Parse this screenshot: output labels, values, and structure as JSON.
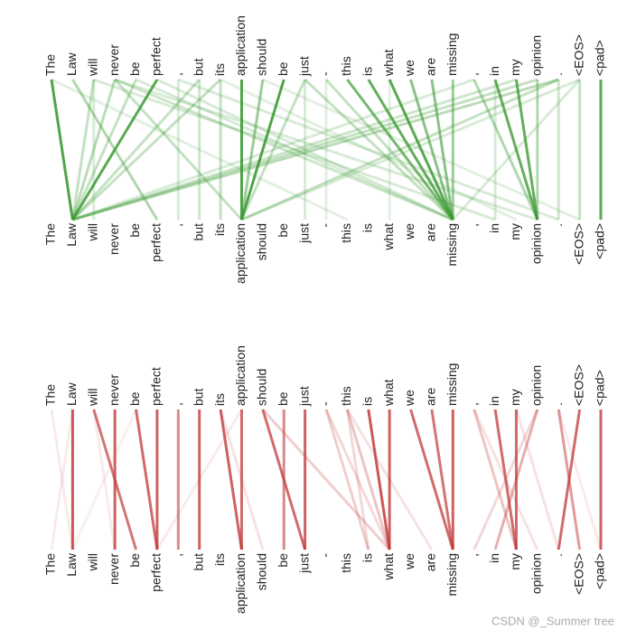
{
  "tokens": [
    "The",
    "Law",
    "will",
    "never",
    "be",
    "perfect",
    ",",
    "but",
    "its",
    "application",
    "should",
    "be",
    "just",
    "-",
    "this",
    "is",
    "what",
    "we",
    "are",
    "missing",
    ",",
    "in",
    "my",
    "opinion",
    ".",
    "<EOS>",
    "<pad>"
  ],
  "panels": [
    {
      "color": "#3d9a35",
      "edges": [
        [
          0,
          1,
          0.9
        ],
        [
          2,
          1,
          0.3
        ],
        [
          3,
          1,
          0.35
        ],
        [
          4,
          1,
          0.3
        ],
        [
          5,
          1,
          0.85
        ],
        [
          1,
          5,
          0.4
        ],
        [
          3,
          9,
          0.3
        ],
        [
          7,
          1,
          0.3
        ],
        [
          8,
          1,
          0.3
        ],
        [
          9,
          9,
          0.9
        ],
        [
          10,
          9,
          0.5
        ],
        [
          11,
          9,
          0.9
        ],
        [
          12,
          9,
          0.3
        ],
        [
          14,
          19,
          0.7
        ],
        [
          15,
          19,
          0.8
        ],
        [
          16,
          19,
          0.85
        ],
        [
          17,
          19,
          0.6
        ],
        [
          18,
          19,
          0.6
        ],
        [
          19,
          19,
          0.5
        ],
        [
          13,
          19,
          0.3
        ],
        [
          12,
          19,
          0.3
        ],
        [
          5,
          19,
          0.2
        ],
        [
          3,
          19,
          0.25
        ],
        [
          4,
          19,
          0.2
        ],
        [
          20,
          23,
          0.4
        ],
        [
          21,
          23,
          0.8
        ],
        [
          22,
          23,
          0.8
        ],
        [
          23,
          23,
          0.4
        ],
        [
          24,
          1,
          0.35
        ],
        [
          23,
          1,
          0.3
        ],
        [
          22,
          1,
          0.25
        ],
        [
          24,
          9,
          0.3
        ],
        [
          25,
          9,
          0.2
        ],
        [
          26,
          26,
          0.85
        ],
        [
          25,
          25,
          0.3
        ],
        [
          2,
          21,
          0.2
        ],
        [
          3,
          23,
          0.2
        ],
        [
          6,
          24,
          0.2
        ],
        [
          8,
          22,
          0.15
        ],
        [
          10,
          25,
          0.15
        ],
        [
          0,
          14,
          0.15
        ],
        [
          6,
          6,
          0.2
        ],
        [
          7,
          7,
          0.25
        ],
        [
          8,
          8,
          0.3
        ],
        [
          2,
          2,
          0.2
        ],
        [
          12,
          12,
          0.2
        ],
        [
          13,
          13,
          0.15
        ],
        [
          16,
          16,
          0.15
        ],
        [
          24,
          24,
          0.25
        ],
        [
          21,
          21,
          0.2
        ],
        [
          25,
          19,
          0.2
        ],
        [
          20,
          1,
          0.2
        ]
      ]
    },
    {
      "color": "#c23a3a",
      "edges": [
        [
          1,
          1,
          0.85
        ],
        [
          1,
          0,
          0.1
        ],
        [
          2,
          4,
          0.7
        ],
        [
          3,
          3,
          0.8
        ],
        [
          4,
          5,
          0.75
        ],
        [
          5,
          5,
          0.8
        ],
        [
          6,
          6,
          0.6
        ],
        [
          7,
          7,
          0.8
        ],
        [
          8,
          9,
          0.8
        ],
        [
          9,
          9,
          0.75
        ],
        [
          10,
          12,
          0.75
        ],
        [
          10,
          16,
          0.25
        ],
        [
          11,
          11,
          0.6
        ],
        [
          12,
          12,
          0.8
        ],
        [
          14,
          16,
          0.3
        ],
        [
          13,
          15,
          0.25
        ],
        [
          14,
          15,
          0.2
        ],
        [
          15,
          16,
          0.85
        ],
        [
          16,
          16,
          0.8
        ],
        [
          17,
          19,
          0.75
        ],
        [
          18,
          19,
          0.7
        ],
        [
          19,
          19,
          0.8
        ],
        [
          20,
          22,
          0.3
        ],
        [
          21,
          22,
          0.75
        ],
        [
          22,
          22,
          0.75
        ],
        [
          23,
          21,
          0.4
        ],
        [
          23,
          20,
          0.2
        ],
        [
          24,
          25,
          0.5
        ],
        [
          25,
          24,
          0.75
        ],
        [
          26,
          26,
          0.8
        ],
        [
          2,
          3,
          0.1
        ],
        [
          4,
          1,
          0.08
        ],
        [
          8,
          10,
          0.15
        ],
        [
          13,
          16,
          0.2
        ],
        [
          14,
          18,
          0.15
        ],
        [
          9,
          5,
          0.1
        ],
        [
          22,
          24,
          0.15
        ],
        [
          20,
          23,
          0.15
        ],
        [
          24,
          26,
          0.1
        ],
        [
          0,
          1,
          0.1
        ]
      ]
    }
  ],
  "watermark": "CSDN @_Summer tree"
}
